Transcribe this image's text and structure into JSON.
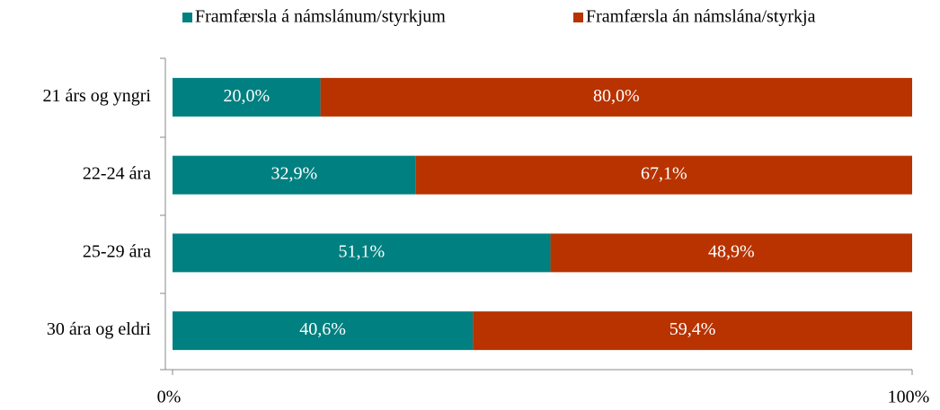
{
  "chart_data": {
    "type": "stacked_barh",
    "categories": [
      "21 árs og yngri",
      "22-24 ára",
      "25-29 ára",
      "30 ára og eldri"
    ],
    "series": [
      {
        "name": "Framfærsla á námslánum/styrkjum",
        "color": "#008080",
        "values": [
          20.0,
          32.9,
          51.1,
          40.6
        ],
        "value_labels": [
          "20,0%",
          "32,9%",
          "51,1%",
          "40,6%"
        ]
      },
      {
        "name": "Framfærsla án námslána/styrkja",
        "color": "#b83300",
        "values": [
          80.0,
          67.1,
          48.9,
          59.4
        ],
        "value_labels": [
          "80,0%",
          "67,1%",
          "48,9%",
          "59,4%"
        ]
      }
    ],
    "xlim": [
      0,
      100
    ],
    "xticks": [
      {
        "value": 0,
        "label": "0%"
      },
      {
        "value": 100,
        "label": "100%"
      }
    ],
    "legend": "top"
  }
}
